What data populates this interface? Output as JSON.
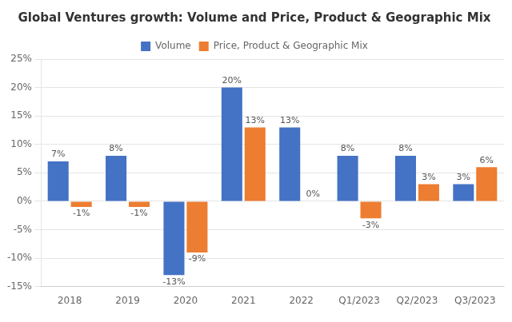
{
  "chart_data": {
    "type": "bar",
    "title": "Global Ventures growth: Volume and Price, Product & Geographic Mix",
    "categories": [
      "2018",
      "2019",
      "2020",
      "2021",
      "2022",
      "Q1/2023",
      "Q2/2023",
      "Q3/2023"
    ],
    "series": [
      {
        "name": "Volume",
        "color": "#4472C4",
        "values": [
          7,
          8,
          -13,
          20,
          13,
          8,
          8,
          3
        ],
        "value_labels": [
          "7%",
          "8%",
          "-13%",
          "20%",
          "13%",
          "8%",
          "8%",
          "3%"
        ]
      },
      {
        "name": "Price, Product & Geographic Mix",
        "color": "#ED7D31",
        "values": [
          -1,
          -1,
          -9,
          13,
          0,
          -3,
          3,
          6
        ],
        "value_labels": [
          "-1%",
          "-1%",
          "-9%",
          "13%",
          "0%",
          "-3%",
          "3%",
          "6%"
        ]
      }
    ],
    "ylim": [
      -15,
      25
    ],
    "yticks": [
      {
        "value": -15,
        "label": "-15%"
      },
      {
        "value": -10,
        "label": "-10%"
      },
      {
        "value": -5,
        "label": "-5%"
      },
      {
        "value": 0,
        "label": "0%"
      },
      {
        "value": 5,
        "label": "5%"
      },
      {
        "value": 10,
        "label": "10%"
      },
      {
        "value": 15,
        "label": "15%"
      },
      {
        "value": 20,
        "label": "20%"
      },
      {
        "value": 25,
        "label": "25%"
      }
    ],
    "grid": true,
    "legend": "top",
    "data_labels": true
  }
}
